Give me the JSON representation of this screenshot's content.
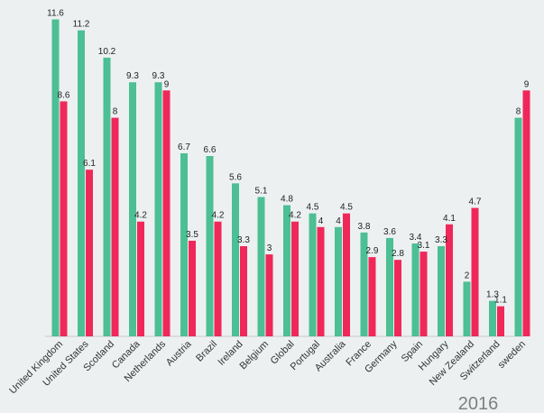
{
  "chart_data": {
    "type": "bar",
    "categories": [
      "United Kingdom",
      "United States",
      "Scotland",
      "Canada",
      "Netherlands",
      "Austria",
      "Brazil",
      "Ireland",
      "Belgium",
      "Global",
      "Portugal",
      "Australia",
      "France",
      "Germany",
      "Spain",
      "Hungary",
      "New Zealand",
      "Switzerland",
      "sweden"
    ],
    "series": [
      {
        "values": [
          11.6,
          11.2,
          10.2,
          9.3,
          9.3,
          6.7,
          6.6,
          5.6,
          5.1,
          4.8,
          4.5,
          4,
          3.8,
          3.6,
          3.4,
          3.3,
          2,
          1.3,
          8
        ],
        "color": "#4cbf94"
      },
      {
        "values": [
          8.6,
          6.1,
          8,
          4.2,
          9,
          3.5,
          4.2,
          3.3,
          3,
          4.2,
          4,
          4.5,
          2.9,
          2.8,
          3.1,
          4.1,
          4.7,
          1.1,
          9
        ],
        "color": "#f0285a"
      }
    ],
    "ylim": [
      0,
      12
    ],
    "annotation": "2016",
    "grid": false,
    "legend": "none"
  }
}
